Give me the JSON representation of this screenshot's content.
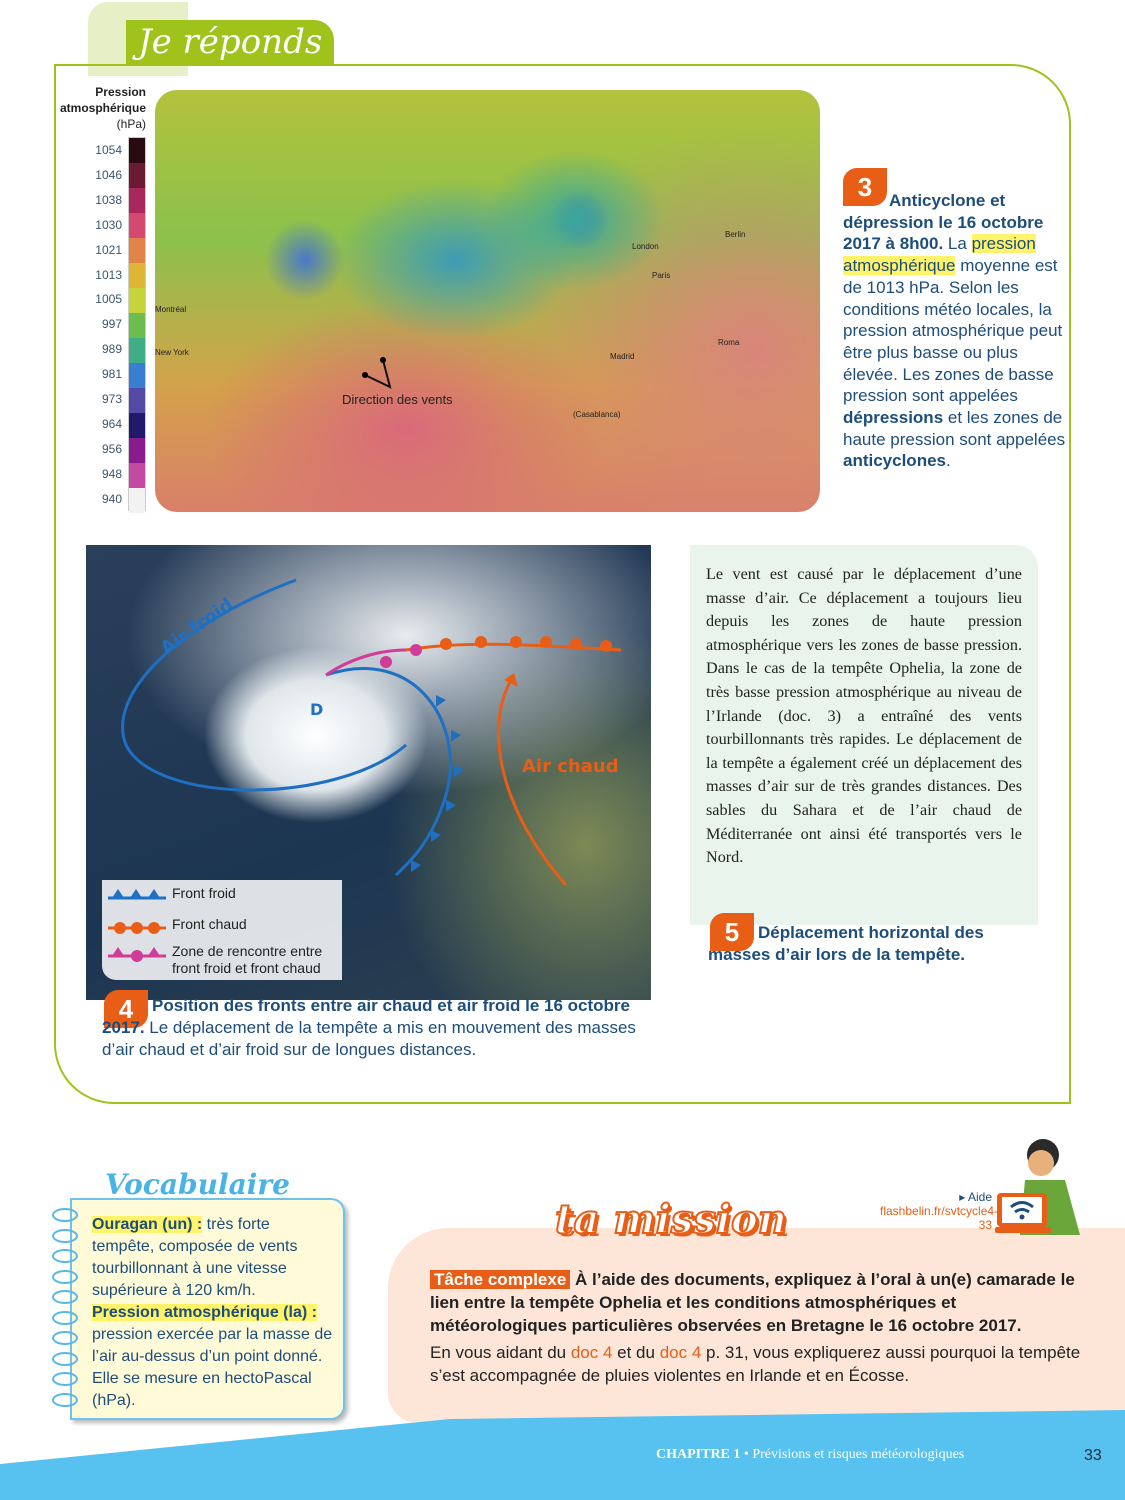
{
  "section_title": "Je réponds",
  "doc3": {
    "legend_title": "Pression atmosphérique",
    "legend_unit": "(hPa)",
    "legend_values": [
      "1054",
      "1046",
      "1038",
      "1030",
      "1021",
      "1013",
      "1005",
      "997",
      "989",
      "981",
      "973",
      "964",
      "956",
      "948",
      "940"
    ],
    "legend_colors": [
      "#2b0b12",
      "#6b1a33",
      "#a8285e",
      "#d4496f",
      "#e08447",
      "#dcb634",
      "#c5d43a",
      "#6cbd4e",
      "#3fae87",
      "#3a7ed1",
      "#544aa6",
      "#221a68",
      "#881c8c",
      "#c24aa2",
      "#f2f2f2"
    ],
    "cities": [
      "Montréal",
      "New York",
      "London",
      "Paris",
      "Berlin",
      "Madrid",
      "Roma",
      "(Casablanca)"
    ],
    "wind_label": "Direction des vents",
    "number": "3",
    "caption_bold": "Anticyclone et dépression le 16 octobre 2017 à 8h00.",
    "caption_1": " La ",
    "caption_hl": "pression atmosphérique",
    "caption_2": " moyenne est de 1013 hPa. Selon les conditions météo locales, la pression atmosphérique peut être plus basse ou plus élevée. Les zones de basse pression sont appelées ",
    "caption_b2": "dépressions",
    "caption_3": " et les zones de haute pression sont appelées ",
    "caption_b3": "anticyclones",
    "caption_4": "."
  },
  "doc4": {
    "label_cold": "Air froid",
    "label_warm": "Air chaud",
    "label_d": "D",
    "legend": [
      "Front froid",
      "Front chaud",
      "Zone de rencontre entre front froid et front chaud"
    ],
    "number": "4",
    "caption_bold": "Position des fronts entre air chaud et air froid le 16 octobre 2017.",
    "caption": " Le déplacement de la tempête a mis en mouvement des masses d’air chaud et d’air froid sur de longues distances."
  },
  "doc5": {
    "text": "Le vent est causé par le déplacement d’une masse d’air. Ce déplacement a toujours lieu depuis les zones de haute pression atmosphérique vers les zones de basse pression. Dans le cas de la tempête Ophelia, la zone de très basse pression atmosphérique au niveau de l’Irlande (doc. 3) a entraîné des vents tourbillonnants très rapides. Le déplacement de la tempête a également créé un déplacement des masses d’air sur de très grandes distances. Des sables du Sahara et de l’air chaud de Méditerranée ont ainsi été transportés vers le Nord.",
    "number": "5",
    "caption": "Déplacement horizontal des masses d’air lors de la tempête."
  },
  "vocabulary": {
    "title": "Vocabulaire",
    "terms": [
      {
        "term": "Ouragan (un) :",
        "def": " très forte tempête, composée de vents tourbillonnant à une vitesse supérieure à 120 km/h."
      },
      {
        "term": "Pression atmosphérique (la) :",
        "def": " pression exercée par la masse de l’air au-dessus d’un point donné. Elle se mesure en hectoPascal (hPa)."
      }
    ]
  },
  "mission": {
    "title": "ta mission",
    "aide_label": "▸ Aide",
    "aide_url": "flashbelin.fr/svtcycle4-33",
    "tag": "Tâche complexe",
    "task": " À l’aide des documents, expliquez à l’oral à un(e) camarade le lien entre la tempête Ophelia et les conditions atmosphériques et météorologiques particulières observées en Bretagne le 16 octobre 2017.",
    "hint_1": "En vous aidant du ",
    "doc_a": "doc 4",
    "hint_2": " et du ",
    "doc_b": "doc 4",
    "hint_3": " p. 31, vous expliquerez aussi pourquoi la tempête s’est accompagnée de pluies violentes en Irlande et en Écosse."
  },
  "footer": {
    "chapter": "CHAPITRE 1",
    "separator": " • ",
    "title": "Prévisions et risques météorologiques",
    "page": "33"
  },
  "colors": {
    "green": "#9fc31a",
    "orange": "#e85e17",
    "blue": "#57c1ef",
    "navy": "#1d4d7a"
  }
}
